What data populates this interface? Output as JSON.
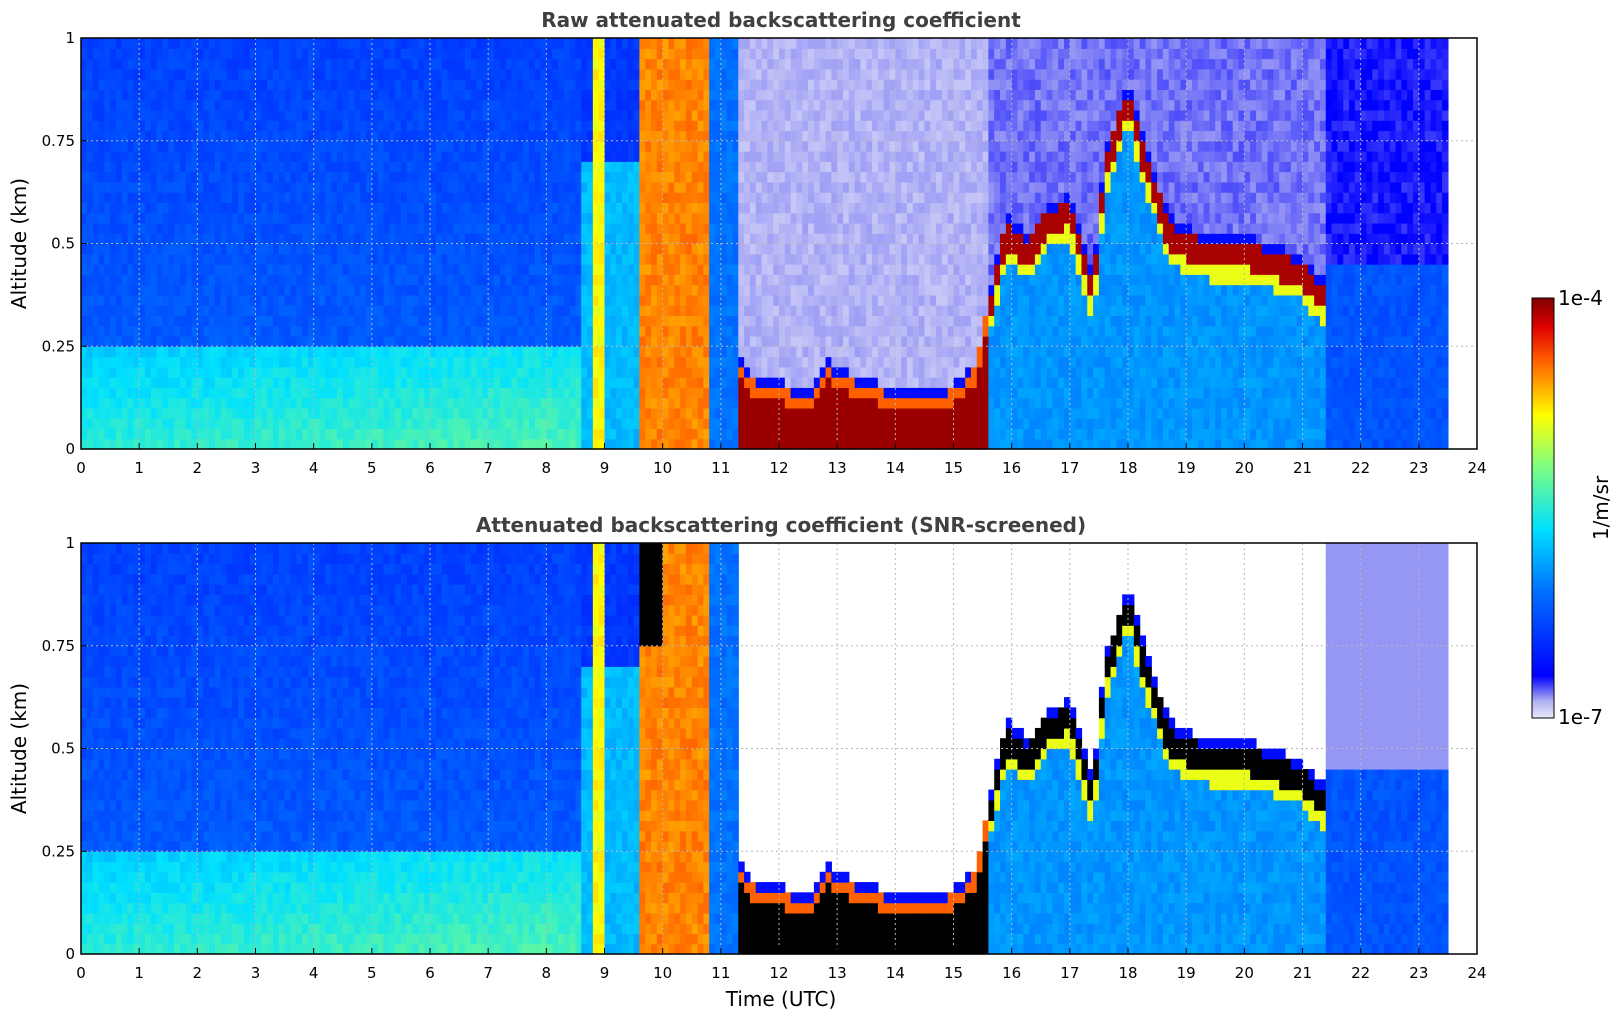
{
  "chart_data": [
    {
      "type": "heatmap",
      "title": "Raw attenuated backscattering coefficient",
      "xlabel": "",
      "ylabel": "Altitude (km)",
      "xlim": [
        0,
        24
      ],
      "ylim": [
        0,
        1
      ],
      "x_ticks": [
        "0",
        "1",
        "2",
        "3",
        "4",
        "5",
        "6",
        "7",
        "8",
        "9",
        "10",
        "11",
        "12",
        "13",
        "14",
        "15",
        "16",
        "17",
        "18",
        "19",
        "20",
        "21",
        "22",
        "23",
        "24"
      ],
      "y_ticks": [
        "0",
        "0.25",
        "0.5",
        "0.75",
        "1"
      ],
      "grid": true,
      "screened": false,
      "layer_top_profile": [
        [
          11.3,
          0.2
        ],
        [
          11.6,
          0.16
        ],
        [
          12,
          0.15
        ],
        [
          12.5,
          0.12
        ],
        [
          12.8,
          0.2
        ],
        [
          13,
          0.18
        ],
        [
          13.5,
          0.15
        ],
        [
          14,
          0.13
        ],
        [
          14.5,
          0.12
        ],
        [
          15,
          0.14
        ],
        [
          15.4,
          0.2
        ],
        [
          15.6,
          0.35
        ],
        [
          15.9,
          0.55
        ],
        [
          16.3,
          0.5
        ],
        [
          16.6,
          0.58
        ],
        [
          17,
          0.6
        ],
        [
          17.4,
          0.4
        ],
        [
          17.6,
          0.7
        ],
        [
          18,
          0.88
        ],
        [
          18.3,
          0.72
        ],
        [
          18.7,
          0.55
        ],
        [
          19,
          0.52
        ],
        [
          19.5,
          0.5
        ],
        [
          20,
          0.5
        ],
        [
          20.5,
          0.48
        ],
        [
          21,
          0.45
        ],
        [
          21.3,
          0.4
        ]
      ],
      "sample_grid": {
        "note_bands": [
          {
            "x": [
              0,
              8.6
            ],
            "surface_level": "low",
            "upper_level": "very low"
          },
          {
            "x": [
              8.7,
              10.8
            ],
            "level": "high"
          },
          {
            "x": [
              11.3,
              15.6
            ],
            "cloud_layer_top_km": 0.2,
            "level": "saturated"
          },
          {
            "x": [
              15.6,
              21.3
            ],
            "cloud_layer": "saturated",
            "below": "low"
          },
          {
            "x": [
              21.3,
              23.5
            ],
            "level": "very low"
          }
        ]
      }
    },
    {
      "type": "heatmap",
      "title": "Attenuated backscattering coefficient (SNR-screened)",
      "xlabel": "Time (UTC)",
      "ylabel": "Altitude (km)",
      "xlim": [
        0,
        24
      ],
      "ylim": [
        0,
        1
      ],
      "x_ticks": [
        "0",
        "1",
        "2",
        "3",
        "4",
        "5",
        "6",
        "7",
        "8",
        "9",
        "10",
        "11",
        "12",
        "13",
        "14",
        "15",
        "16",
        "17",
        "18",
        "19",
        "20",
        "21",
        "22",
        "23",
        "24"
      ],
      "y_ticks": [
        "0",
        "0.25",
        "0.5",
        "0.75",
        "1"
      ],
      "grid": true,
      "screened": true
    }
  ],
  "colorbar": {
    "label": "1/m/sr",
    "max_label": "1e-4",
    "min_label": "1e-7",
    "colormap": "jet",
    "low_color": "#e8e8f8",
    "high_color": "#800000",
    "screened_color": "#000000"
  }
}
